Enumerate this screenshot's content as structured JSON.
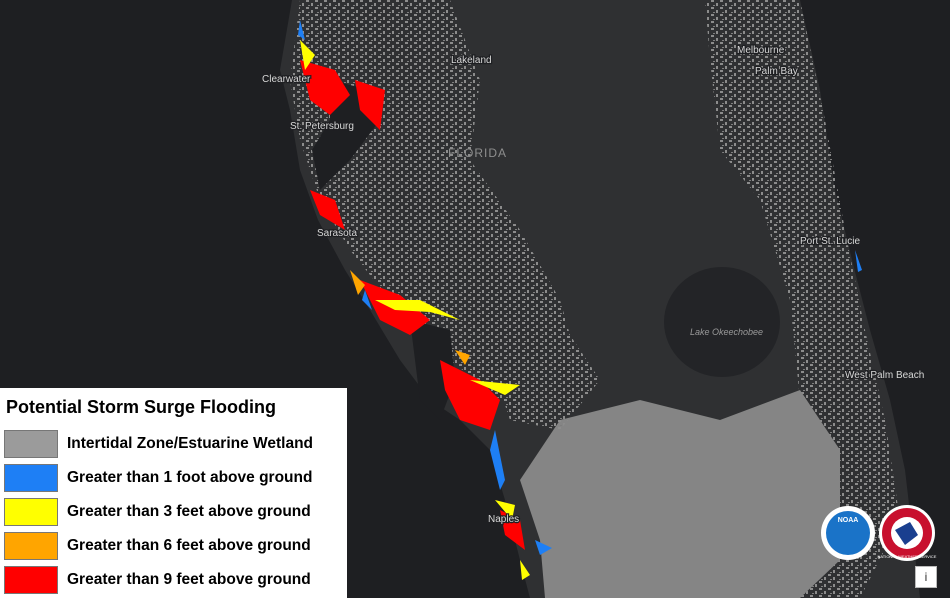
{
  "map": {
    "labels": [
      "Clearwater",
      "St. Petersburg",
      "Lakeland",
      "FLORIDA",
      "Melbourne",
      "Palm Bay",
      "Sarasota",
      "Port St. Lucie",
      "Lake Okeechobee",
      "West Palm Beach",
      "Naples"
    ]
  },
  "legend": {
    "title": "Potential Storm Surge Flooding",
    "items": [
      {
        "label": "Intertidal Zone/Estuarine Wetland",
        "color": "#9b9b9b"
      },
      {
        "label": "Greater than 1 foot above ground",
        "color": "#1e7ff5"
      },
      {
        "label": "Greater than 3 feet above ground",
        "color": "#ffff00"
      },
      {
        "label": "Greater than 6 feet above ground",
        "color": "#ffa500"
      },
      {
        "label": "Greater than 9 feet above ground",
        "color": "#ff0000"
      }
    ]
  },
  "logos": {
    "noaa": "NOAA",
    "nws": "NATIONAL WEATHER SERVICE"
  },
  "info_button": "i"
}
